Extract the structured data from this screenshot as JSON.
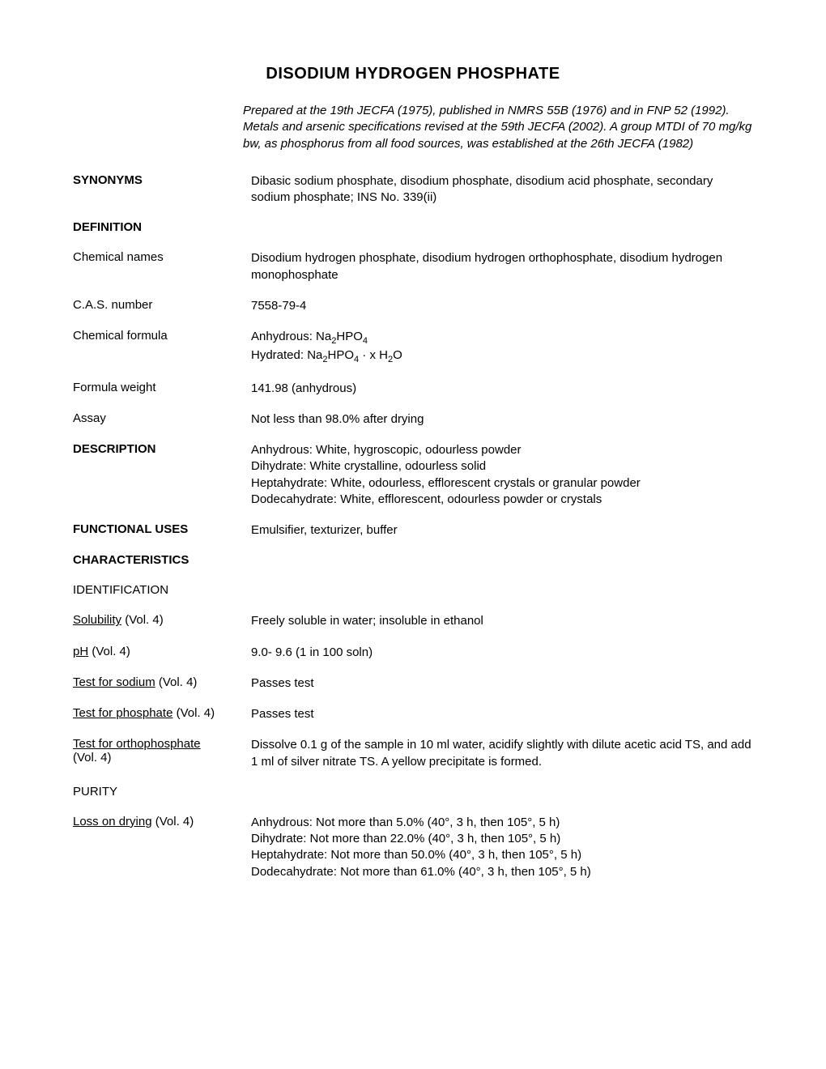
{
  "title": "DISODIUM HYDROGEN PHOSPHATE",
  "prepared": "Prepared at the 19th JECFA (1975), published in NMRS 55B (1976) and in FNP 52 (1992). Metals and arsenic specifications revised at the 59th JECFA (2002). A group  MTDI of 70 mg/kg bw, as phosphorus from all food sources, was established at the 26th JECFA (1982)",
  "synonyms": {
    "label": "SYNONYMS",
    "value": "Dibasic sodium phosphate, disodium phosphate, disodium acid phosphate, secondary sodium phosphate; INS No. 339(ii)"
  },
  "definition": {
    "label": "DEFINITION",
    "chemical_names": {
      "label": "Chemical names",
      "value": "Disodium hydrogen phosphate, disodium hydrogen orthophosphate, disodium hydrogen monophosphate"
    },
    "cas_number": {
      "label": "C.A.S. number",
      "value": "7558-79-4"
    },
    "chemical_formula": {
      "label": "Chemical formula",
      "anhydrous_prefix": "Anhydrous: Na",
      "anhydrous_mid": "HPO",
      "hydrated_prefix": "Hydrated: Na",
      "hydrated_mid": "HPO",
      "hydrated_suffix": " · x H",
      "hydrated_end": "O"
    },
    "formula_weight": {
      "label": "Formula weight",
      "value": "141.98 (anhydrous)"
    },
    "assay": {
      "label": "Assay",
      "value": "Not less than 98.0% after drying"
    }
  },
  "description": {
    "label": "DESCRIPTION",
    "lines": [
      "Anhydrous: White, hygroscopic, odourless powder",
      "Dihydrate: White crystalline, odourless solid",
      "Heptahydrate: White, odourless, efflorescent crystals or granular powder",
      "Dodecahydrate: White, efflorescent, odourless powder or crystals"
    ]
  },
  "functional_uses": {
    "label": "FUNCTIONAL USES",
    "value": "Emulsifier, texturizer, buffer"
  },
  "characteristics": {
    "label": "CHARACTERISTICS",
    "identification": {
      "label": "IDENTIFICATION",
      "solubility": {
        "label": "Solubility",
        "vol": " (Vol. 4)",
        "value": "Freely soluble in water; insoluble in ethanol"
      },
      "ph": {
        "label": "pH",
        "vol": " (Vol. 4)",
        "value": "9.0- 9.6 (1 in 100 soln)"
      },
      "test_sodium": {
        "label": "Test for sodium",
        "vol": " (Vol. 4)",
        "value": "Passes test"
      },
      "test_phosphate": {
        "label": "Test for phosphate",
        "vol": " (Vol. 4)",
        "value": "Passes test"
      },
      "test_orthophosphate": {
        "label": "Test for orthophosphate",
        "vol": "(Vol. 4)",
        "value": "Dissolve 0.1 g of the sample in 10 ml water, acidify slightly with dilute acetic acid TS, and add 1 ml of silver nitrate TS. A yellow precipitate is formed."
      }
    },
    "purity": {
      "label": "PURITY",
      "loss_on_drying": {
        "label": "Loss on drying",
        "vol": " (Vol. 4)",
        "lines": [
          "Anhydrous: Not more than 5.0% (40°, 3 h, then 105°, 5 h)",
          "Dihydrate: Not more than 22.0% (40°, 3 h, then 105°, 5 h)",
          "Heptahydrate: Not more than 50.0% (40°, 3 h, then 105°, 5 h)",
          "Dodecahydrate: Not more than 61.0% (40°, 3 h, then 105°, 5 h)"
        ]
      }
    }
  }
}
